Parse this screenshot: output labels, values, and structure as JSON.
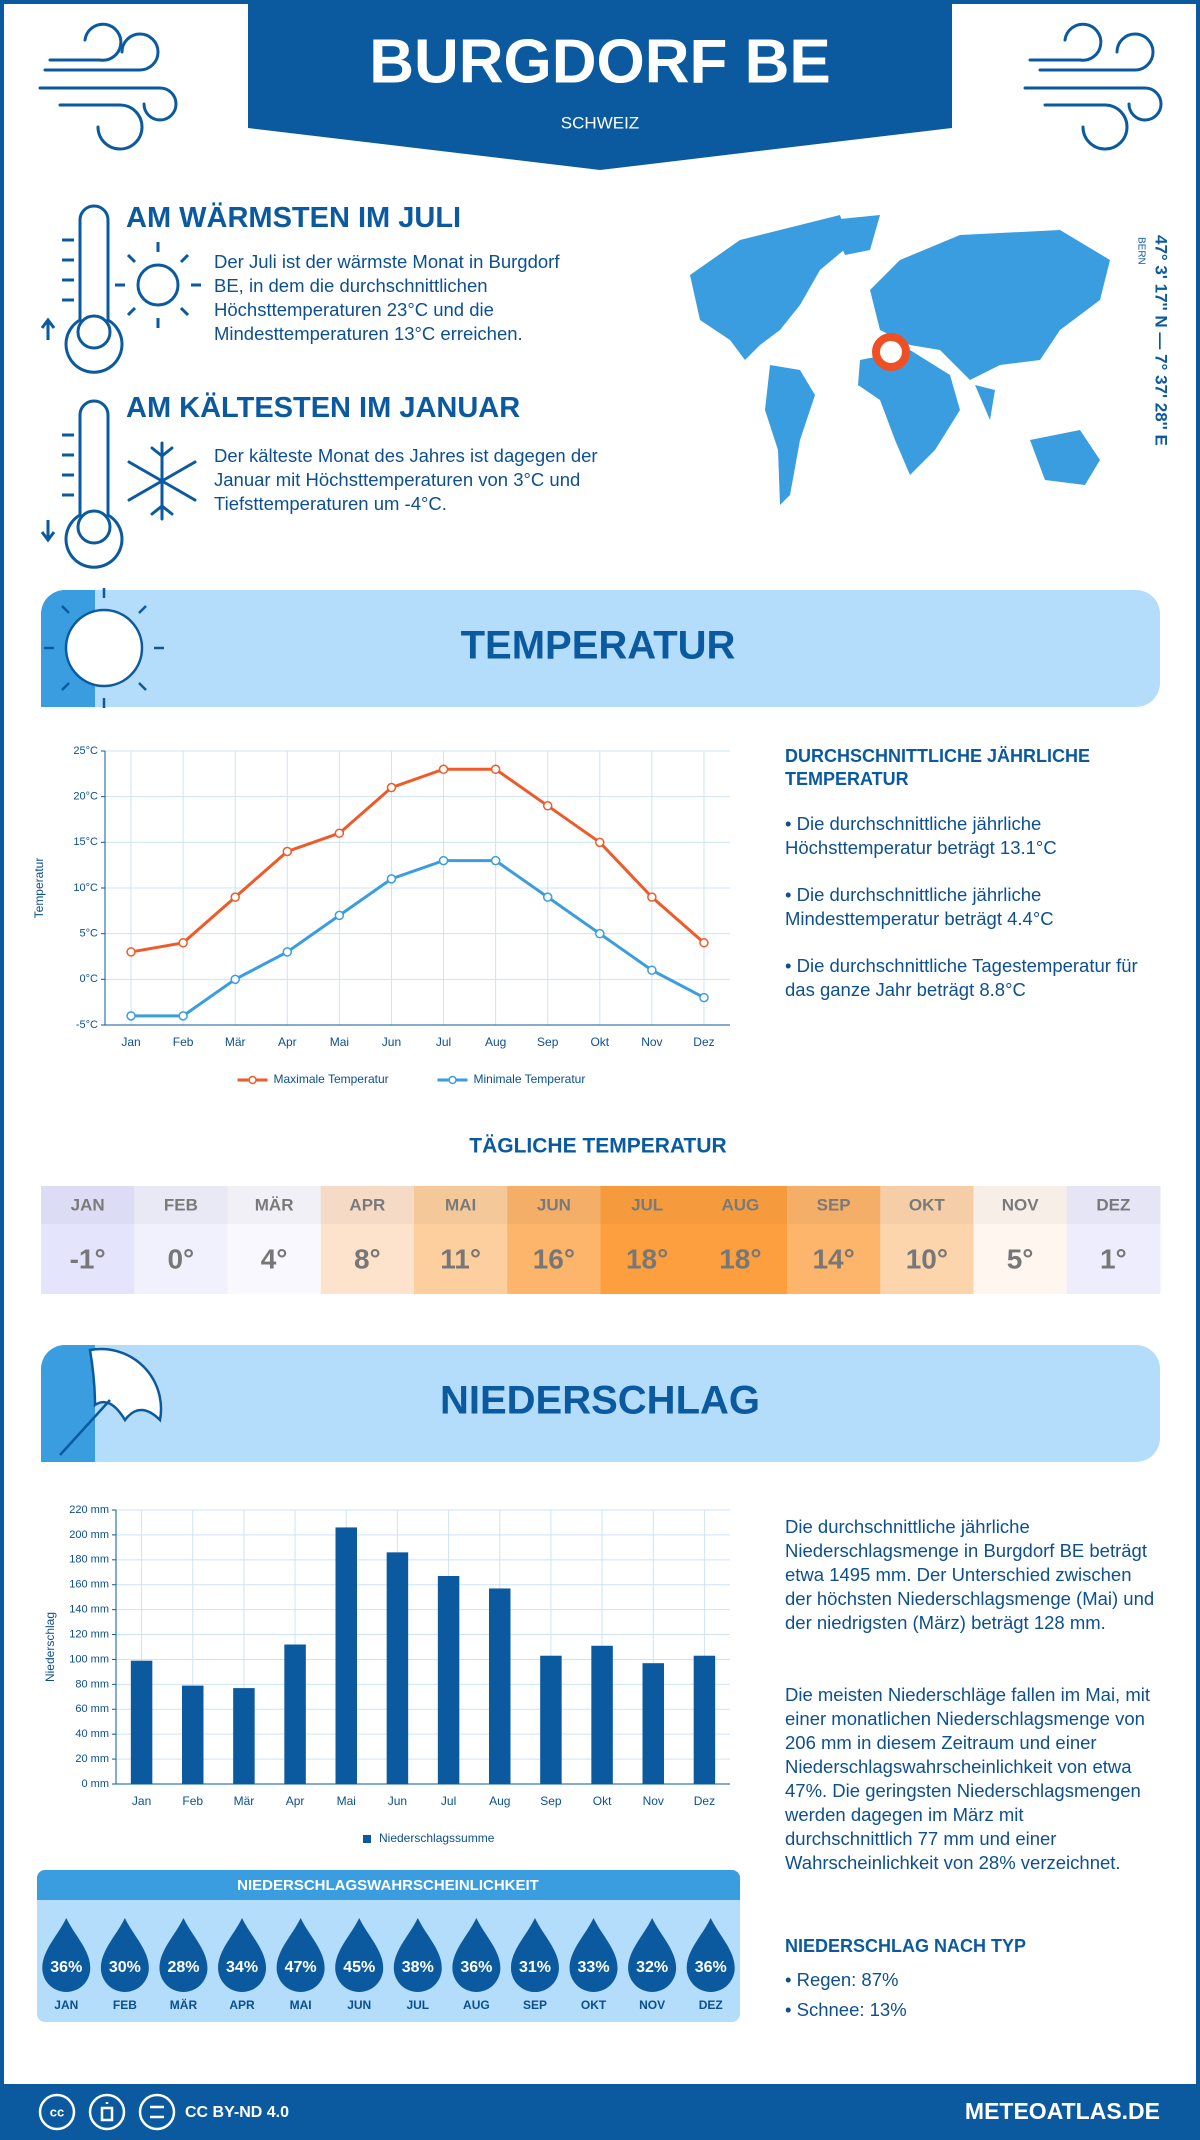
{
  "header": {
    "title": "BURGDORF BE",
    "subtitle": "SCHWEIZ"
  },
  "highlights": [
    {
      "heading": "AM WÄRMSTEN IM JULI",
      "text": "Der Juli ist der wärmste Monat in Burgdorf BE, in dem die durchschnittlichen Höchsttemperaturen 23°C und die Mindesttemperaturen 13°C erreichen."
    },
    {
      "heading": "AM KÄLTESTEN IM JANUAR",
      "text": "Der kälteste Monat des Jahres ist dagegen der Januar mit Höchsttemperaturen von 3°C und Tiefsttemperaturen um -4°C."
    }
  ],
  "map": {
    "coordinates": "47° 3' 17'' N — 7° 37' 28'' E",
    "capital": "BERN"
  },
  "temperature": {
    "title": "TEMPERATUR",
    "summary_heading": "DURCHSCHNITTLICHE JÄHRLICHE TEMPERATUR",
    "summary": [
      "• Die durchschnittliche jährliche Höchsttemperatur beträgt 13.1°C",
      "• Die durchschnittliche jährliche Mindesttemperatur beträgt 4.4°C",
      "• Die durchschnittliche Tagestemperatur für das ganze Jahr beträgt 8.8°C"
    ]
  },
  "daily_temperature": {
    "title": "TÄGLICHE TEMPERATUR",
    "months": [
      "JAN",
      "FEB",
      "MÄR",
      "APR",
      "MAI",
      "JUN",
      "JUL",
      "AUG",
      "SEP",
      "OKT",
      "NOV",
      "DEZ"
    ],
    "values": [
      "-1°",
      "0°",
      "4°",
      "8°",
      "11°",
      "16°",
      "18°",
      "18°",
      "14°",
      "10°",
      "5°",
      "1°"
    ],
    "colors": [
      "#e4e4fd",
      "#f1f1fd",
      "#f8f8fe",
      "#fde3cc",
      "#fdcf9f",
      "#fdb46b",
      "#fd9f3f",
      "#fd9f3f",
      "#fdb46b",
      "#fdd5ad",
      "#fff6f0",
      "#ededfd"
    ]
  },
  "precipitation": {
    "title": "NIEDERSCHLAG",
    "text": [
      "Die durchschnittliche jährliche Niederschlagsmenge in Burgdorf BE beträgt etwa 1495 mm. Der Unterschied zwischen der höchsten Niederschlagsmenge (Mai) und der niedrigsten (März) beträgt 128 mm.",
      "Die meisten Niederschläge fallen im Mai, mit einer monatlichen Niederschlagsmenge von 206 mm in diesem Zeitraum und einer Niederschlagswahrscheinlichkeit von etwa 47%. Die geringsten Niederschlagsmengen werden dagegen im März mit durchschnittlich 77 mm und einer Wahrscheinlichkeit von 28% verzeichnet."
    ],
    "type_heading": "NIEDERSCHLAG NACH TYP",
    "types": [
      "• Regen: 87%",
      "• Schnee: 13%"
    ]
  },
  "precipitation_probability": {
    "title": "NIEDERSCHLAGSWAHRSCHEINLICHKEIT",
    "months": [
      "JAN",
      "FEB",
      "MÄR",
      "APR",
      "MAI",
      "JUN",
      "JUL",
      "AUG",
      "SEP",
      "OKT",
      "NOV",
      "DEZ"
    ],
    "values": [
      "36%",
      "30%",
      "28%",
      "34%",
      "47%",
      "45%",
      "38%",
      "36%",
      "31%",
      "33%",
      "32%",
      "36%"
    ]
  },
  "chart_data": [
    {
      "type": "line",
      "y_label": "Temperatur",
      "categories": [
        "Jan",
        "Feb",
        "Mär",
        "Apr",
        "Mai",
        "Jun",
        "Jul",
        "Aug",
        "Sep",
        "Okt",
        "Nov",
        "Dez"
      ],
      "series": [
        {
          "name": "Maximale Temperatur",
          "color": "#f05a28",
          "values": [
            3,
            4,
            9,
            14,
            16,
            21,
            23,
            23,
            19,
            15,
            9,
            4
          ]
        },
        {
          "name": "Minimale Temperatur",
          "color": "#3a9de0",
          "values": [
            -4,
            -4,
            0,
            3,
            7,
            11,
            13,
            13,
            9,
            5,
            1,
            -2
          ]
        }
      ],
      "ylim": [
        -5,
        25
      ],
      "yticks": [
        {
          "value": -5,
          "label": "-5°C"
        },
        {
          "value": 0,
          "label": "0°C"
        },
        {
          "value": 5,
          "label": "5°C"
        },
        {
          "value": 10,
          "label": "10°C"
        },
        {
          "value": 15,
          "label": "15°C"
        },
        {
          "value": 20,
          "label": "20°C"
        },
        {
          "value": 25,
          "label": "25°C"
        }
      ],
      "grid": true
    },
    {
      "type": "bar",
      "y_label": "Niederschlag",
      "categories": [
        "Jan",
        "Feb",
        "Mär",
        "Apr",
        "Mai",
        "Jun",
        "Jul",
        "Aug",
        "Sep",
        "Okt",
        "Nov",
        "Dez"
      ],
      "series": [
        {
          "name": "Niederschlagssumme",
          "color": "#0b5aa0",
          "values": [
            99,
            79,
            77,
            112,
            206,
            186,
            167,
            157,
            103,
            111,
            97,
            103
          ]
        }
      ],
      "ylim": [
        0,
        220
      ],
      "yticks": [
        {
          "value": 0,
          "label": "0 mm"
        },
        {
          "value": 20,
          "label": "20 mm"
        },
        {
          "value": 40,
          "label": "40 mm"
        },
        {
          "value": 60,
          "label": "60 mm"
        },
        {
          "value": 80,
          "label": "80 mm"
        },
        {
          "value": 100,
          "label": "100 mm"
        },
        {
          "value": 120,
          "label": "120 mm"
        },
        {
          "value": 140,
          "label": "140 mm"
        },
        {
          "value": 160,
          "label": "160 mm"
        },
        {
          "value": 180,
          "label": "180 mm"
        },
        {
          "value": 200,
          "label": "200 mm"
        },
        {
          "value": 220,
          "label": "220 mm"
        }
      ],
      "grid": true
    }
  ],
  "footer": {
    "license": "CC BY-ND 4.0",
    "site": "METEOATLAS.DE"
  }
}
